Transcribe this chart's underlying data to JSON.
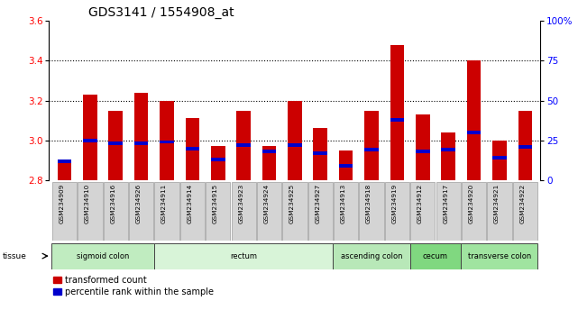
{
  "title": "GDS3141 / 1554908_at",
  "samples": [
    "GSM234909",
    "GSM234910",
    "GSM234916",
    "GSM234926",
    "GSM234911",
    "GSM234914",
    "GSM234915",
    "GSM234923",
    "GSM234924",
    "GSM234925",
    "GSM234927",
    "GSM234913",
    "GSM234918",
    "GSM234919",
    "GSM234912",
    "GSM234917",
    "GSM234920",
    "GSM234921",
    "GSM234922"
  ],
  "transformed_count": [
    2.89,
    3.23,
    3.15,
    3.24,
    3.2,
    3.11,
    2.97,
    3.15,
    2.97,
    3.2,
    3.06,
    2.95,
    3.15,
    3.48,
    3.13,
    3.04,
    3.4,
    3.0,
    3.15
  ],
  "percentile_rank": [
    12,
    25,
    23,
    23,
    24,
    20,
    13,
    22,
    18,
    22,
    17,
    9,
    19,
    38,
    18,
    19,
    30,
    14,
    21
  ],
  "tissue_groups": [
    {
      "label": "sigmoid colon",
      "start": 0,
      "end": 4,
      "color": "#c0ecc0"
    },
    {
      "label": "rectum",
      "start": 4,
      "end": 11,
      "color": "#d8f4d8"
    },
    {
      "label": "ascending colon",
      "start": 11,
      "end": 14,
      "color": "#b8e8b8"
    },
    {
      "label": "cecum",
      "start": 14,
      "end": 16,
      "color": "#80d880"
    },
    {
      "label": "transverse colon",
      "start": 16,
      "end": 19,
      "color": "#a0e4a0"
    }
  ],
  "ylim_left": [
    2.8,
    3.6
  ],
  "ylim_right": [
    0,
    100
  ],
  "yticks_left": [
    2.8,
    3.0,
    3.2,
    3.4,
    3.6
  ],
  "yticks_right": [
    0,
    25,
    50,
    75,
    100
  ],
  "ytick_right_labels": [
    "0",
    "25",
    "50",
    "75",
    "100%"
  ],
  "bar_color_red": "#cc0000",
  "bar_color_blue": "#0000cc",
  "bar_width": 0.55
}
